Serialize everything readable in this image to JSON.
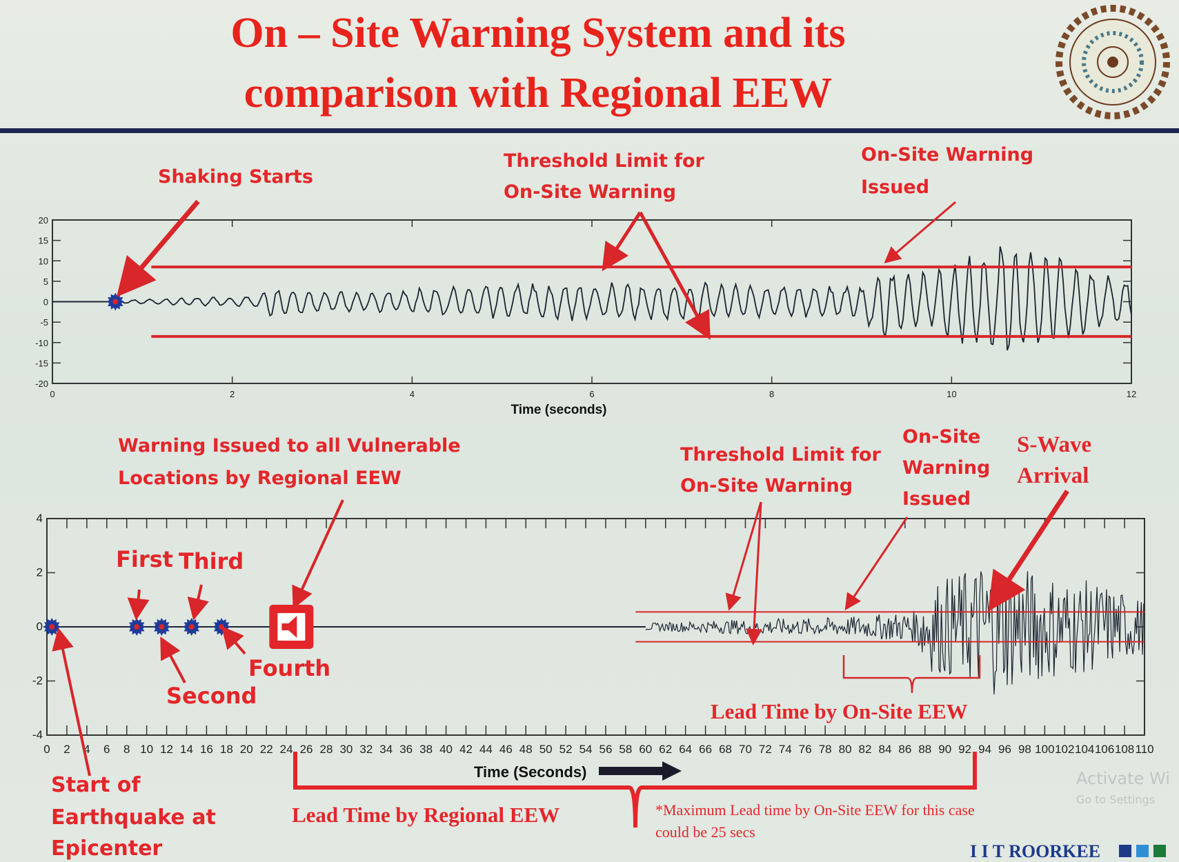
{
  "slide": {
    "title_line1": "On – Site Warning System and its",
    "title_line2": "comparison with Regional EEW",
    "brand": "I I T ROORKEE",
    "brand_colors": [
      "#1d3a8a",
      "#2f8fd6",
      "#1d7a3a"
    ],
    "watermark_line1": "Activate Wi",
    "watermark_line2": "Go to Settings"
  },
  "annotations_top": {
    "shaking_starts": "Shaking Starts",
    "threshold_line1": "Threshold Limit for",
    "threshold_line2": "On-Site Warning",
    "onsite_issued_line1": "On-Site Warning",
    "onsite_issued_line2": "Issued"
  },
  "annotations_bottom": {
    "regional_line1": "Warning Issued to all Vulnerable",
    "regional_line2": "Locations by Regional EEW",
    "threshold_line1": "Threshold Limit for",
    "threshold_line2": "On-Site Warning",
    "onsite_line1": "On-Site",
    "onsite_line2": "Warning",
    "onsite_line3": "Issued",
    "swave_line1": "S-Wave",
    "swave_line2": "Arrival",
    "first": "First",
    "second": "Second",
    "third": "Third",
    "fourth": "Fourth",
    "start_line1": "Start of",
    "start_line2": "Earthquake at",
    "start_line3": "Epicenter",
    "lead_onsite": "Lead Time by On-Site EEW",
    "lead_regional": "Lead Time by Regional EEW",
    "footnote_line1": "*Maximum Lead time by On-Site EEW for this case",
    "footnote_line2": "could be 25 secs"
  },
  "colors": {
    "accent": "#e3262a",
    "signal": "#1a2430",
    "marker": "#1f3a9a",
    "rule": "#1c2550"
  },
  "chart_data": [
    {
      "type": "line",
      "xlabel": "Time (seconds)",
      "xlim": [
        0,
        12
      ],
      "ylim": [
        -20,
        20
      ],
      "xticks": [
        0,
        2,
        4,
        6,
        8,
        10,
        12
      ],
      "yticks": [
        20,
        15,
        10,
        5,
        0,
        -5,
        -10,
        -15,
        -20
      ],
      "grid": false,
      "threshold": [
        8.5,
        -8.5
      ],
      "threshold_start": 1.1,
      "event_marker": 0.7,
      "amplitude_envelope": [
        [
          0.7,
          0.4
        ],
        [
          1.5,
          1
        ],
        [
          2.3,
          1.5
        ],
        [
          2.4,
          4
        ],
        [
          3.5,
          2.5
        ],
        [
          4.8,
          4.5
        ],
        [
          7,
          5
        ],
        [
          9,
          4
        ],
        [
          9.2,
          10
        ],
        [
          9.5,
          7
        ],
        [
          10,
          10
        ],
        [
          10.3,
          15
        ],
        [
          10.8,
          16
        ],
        [
          11.5,
          8
        ],
        [
          12,
          6
        ]
      ]
    },
    {
      "type": "line",
      "xlabel": "Time (Seconds)",
      "xlim": [
        0,
        110
      ],
      "ylim": [
        -4,
        4
      ],
      "xticks": [
        0,
        2,
        4,
        6,
        8,
        10,
        12,
        14,
        16,
        18,
        20,
        22,
        24,
        26,
        28,
        30,
        32,
        34,
        36,
        38,
        40,
        42,
        44,
        46,
        48,
        50,
        52,
        54,
        56,
        58,
        60,
        62,
        64,
        66,
        68,
        70,
        72,
        74,
        76,
        78,
        80,
        82,
        84,
        86,
        88,
        90,
        92,
        94,
        96,
        98,
        100,
        102,
        104,
        106,
        108,
        110
      ],
      "yticks": [
        4,
        2,
        0,
        -2,
        -4
      ],
      "grid": false,
      "threshold": [
        0.55,
        -0.55
      ],
      "threshold_start": 59,
      "station_markers": [
        0.5,
        9,
        11.5,
        14.5,
        17.5
      ],
      "regional_warning_time": 24.5,
      "amplitude_envelope": [
        [
          59,
          0.12
        ],
        [
          70,
          0.28
        ],
        [
          80,
          0.35
        ],
        [
          87,
          0.6
        ],
        [
          88,
          1.6
        ],
        [
          92,
          2.1
        ],
        [
          94,
          2.6
        ],
        [
          100,
          2
        ],
        [
          106,
          1.6
        ],
        [
          110,
          1
        ]
      ]
    }
  ]
}
